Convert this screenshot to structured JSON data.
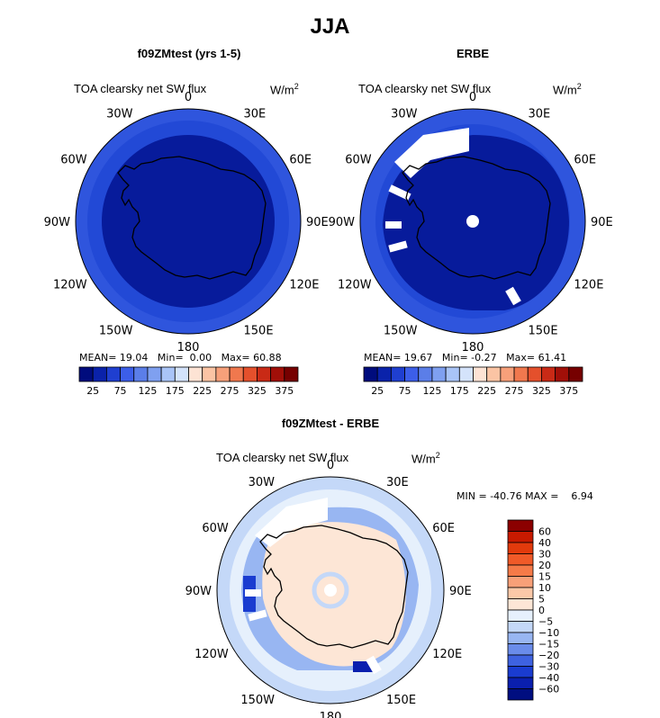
{
  "title": "JJA",
  "colors": {
    "ocean_blue": "#2f55dd",
    "ring_blue": "#2249d6",
    "deep_blue": "#071b9b",
    "coast": "#000000"
  },
  "panels": [
    {
      "title": "f09ZMtest (yrs 1-5)",
      "variable": "TOA clearsky net SW flux",
      "units": "W/m",
      "units_exp": "2",
      "lon_labels": [
        "0",
        "30E",
        "60E",
        "90E",
        "120E",
        "150E",
        "180",
        "150W",
        "120W",
        "90W",
        "60W",
        "30W"
      ],
      "stats": {
        "mean_label": "MEAN=",
        "mean": "19.04",
        "min_label": "Min=",
        "min": "0.00",
        "max_label": "Max=",
        "max": "60.88"
      }
    },
    {
      "title": "ERBE",
      "variable": "TOA clearsky net SW flux",
      "units": "W/m",
      "units_exp": "2",
      "lon_labels": [
        "0",
        "30E",
        "60E",
        "90E",
        "120E",
        "150E",
        "180",
        "150W",
        "120W",
        "90W",
        "60W",
        "30W"
      ],
      "stats": {
        "mean_label": "MEAN=",
        "mean": "19.67",
        "min_label": "Min=",
        "min": "-0.27",
        "max_label": "Max=",
        "max": "61.41"
      }
    },
    {
      "title": "f09ZMtest - ERBE",
      "variable": "TOA clearsky net SW flux",
      "units": "W/m",
      "units_exp": "2",
      "lon_labels": [
        "0",
        "30E",
        "60E",
        "90E",
        "120E",
        "150E",
        "180",
        "150W",
        "120W",
        "90W",
        "60W",
        "30W"
      ],
      "stats": {
        "min_label": "MIN =",
        "min": "-40.76",
        "max_label": "MAX =",
        "max": "6.94"
      }
    }
  ],
  "chart_data": [
    {
      "type": "heatmap",
      "title": "f09ZMtest (yrs 1-5)",
      "projection": "south polar stereographic",
      "variable": "TOA clearsky net SW flux",
      "units": "W/m2",
      "mean": 19.04,
      "min": 0.0,
      "max": 60.88,
      "colorbar": {
        "levels": [
          25,
          50,
          75,
          100,
          125,
          150,
          175,
          200,
          225,
          250,
          275,
          300,
          325,
          350,
          375
        ],
        "tick_labels": [
          "25",
          "75",
          "125",
          "175",
          "225",
          "275",
          "325",
          "375"
        ],
        "colors": [
          "#000c7d",
          "#0a22aa",
          "#1f3fd0",
          "#3c5ee8",
          "#5b7ee8",
          "#7fa0f0",
          "#a9c4f7",
          "#d4e3fb",
          "#fde3d4",
          "#fbc4a4",
          "#f7a07a",
          "#f0784e",
          "#e4502c",
          "#c92a16",
          "#a10f08",
          "#760000"
        ]
      }
    },
    {
      "type": "heatmap",
      "title": "ERBE",
      "projection": "south polar stereographic",
      "variable": "TOA clearsky net SW flux",
      "units": "W/m2",
      "mean": 19.67,
      "min": -0.27,
      "max": 61.41,
      "colorbar": {
        "levels": [
          25,
          50,
          75,
          100,
          125,
          150,
          175,
          200,
          225,
          250,
          275,
          300,
          325,
          350,
          375
        ],
        "tick_labels": [
          "25",
          "75",
          "125",
          "175",
          "225",
          "275",
          "325",
          "375"
        ],
        "colors": [
          "#000c7d",
          "#0a22aa",
          "#1f3fd0",
          "#3c5ee8",
          "#5b7ee8",
          "#7fa0f0",
          "#a9c4f7",
          "#d4e3fb",
          "#fde3d4",
          "#fbc4a4",
          "#f7a07a",
          "#f0784e",
          "#e4502c",
          "#c92a16",
          "#a10f08",
          "#760000"
        ]
      }
    },
    {
      "type": "heatmap",
      "title": "f09ZMtest - ERBE",
      "projection": "south polar stereographic",
      "variable": "TOA clearsky net SW flux",
      "units": "W/m2",
      "min": -40.76,
      "max": 6.94,
      "colorbar": {
        "levels": [
          60,
          40,
          30,
          20,
          15,
          10,
          5,
          0,
          -5,
          -10,
          -15,
          -20,
          -30,
          -40,
          -60
        ],
        "tick_labels": [
          "60",
          "40",
          "30",
          "20",
          "15",
          "10",
          "5",
          "0",
          "−5",
          "−10",
          "−15",
          "−20",
          "−30",
          "−40",
          "−60"
        ],
        "colors": [
          "#8b0000",
          "#c81a00",
          "#e23a0c",
          "#f05a28",
          "#f57a48",
          "#f8a078",
          "#fbc8a8",
          "#fde6d6",
          "#e6f0fc",
          "#c4d8f8",
          "#98b6f2",
          "#6a8cea",
          "#3e62e0",
          "#1a3cd0",
          "#0a1fae",
          "#000e80"
        ]
      }
    }
  ]
}
